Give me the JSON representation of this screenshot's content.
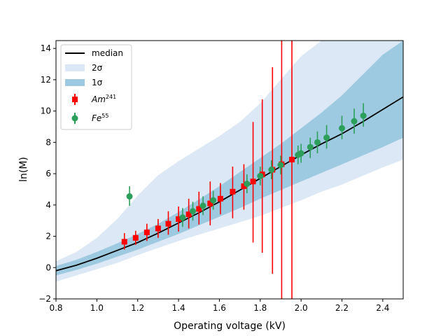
{
  "chart_data": {
    "type": "scatter",
    "xlabel": "Operating voltage (kV)",
    "ylabel": "ln(M)",
    "xlim": [
      0.8,
      2.5
    ],
    "ylim": [
      -2,
      14.5
    ],
    "xticks": [
      "0.8",
      "1.0",
      "1.2",
      "1.4",
      "1.6",
      "1.8",
      "2.0",
      "2.2",
      "2.4"
    ],
    "yticks": [
      "−2",
      "0",
      "2",
      "4",
      "6",
      "8",
      "10",
      "12",
      "14"
    ],
    "legend_position": "top-left",
    "grid": false,
    "median": {
      "name": "median",
      "color": "#000000",
      "x": [
        0.8,
        0.9,
        1.0,
        1.1,
        1.2,
        1.3,
        1.4,
        1.5,
        1.6,
        1.7,
        1.8,
        1.9,
        2.0,
        2.1,
        2.2,
        2.3,
        2.4,
        2.5
      ],
      "y": [
        -0.2,
        0.15,
        0.6,
        1.1,
        1.6,
        2.2,
        2.85,
        3.5,
        4.2,
        4.95,
        5.7,
        6.45,
        7.2,
        7.9,
        8.55,
        9.3,
        10.1,
        10.9
      ]
    },
    "band_2sigma": {
      "name": "2σ",
      "color": "#dce8f5",
      "x": [
        0.8,
        0.9,
        1.0,
        1.1,
        1.2,
        1.3,
        1.4,
        1.5,
        1.6,
        1.7,
        1.8,
        1.9,
        2.0,
        2.1,
        2.2,
        2.3,
        2.4,
        2.5
      ],
      "lower": [
        -0.9,
        -0.5,
        -0.1,
        0.3,
        0.8,
        1.25,
        1.7,
        2.1,
        2.5,
        2.9,
        3.3,
        3.8,
        4.3,
        4.85,
        5.3,
        5.85,
        6.4,
        6.9
      ],
      "upper": [
        0.4,
        1.0,
        1.9,
        3.1,
        4.6,
        5.9,
        6.8,
        7.6,
        8.4,
        9.3,
        10.5,
        12.0,
        13.5,
        14.5,
        14.5,
        14.5,
        14.5,
        14.5
      ]
    },
    "band_1sigma": {
      "name": "1σ",
      "color": "#9ecae1",
      "x": [
        0.8,
        0.9,
        1.0,
        1.1,
        1.2,
        1.3,
        1.4,
        1.5,
        1.6,
        1.7,
        1.8,
        1.9,
        2.0,
        2.1,
        2.2,
        2.3,
        2.4,
        2.5
      ],
      "lower": [
        -0.5,
        -0.15,
        0.25,
        0.7,
        1.15,
        1.65,
        2.15,
        2.7,
        3.25,
        3.8,
        4.4,
        4.95,
        5.5,
        6.05,
        6.6,
        7.15,
        7.7,
        8.3
      ],
      "upper": [
        0.1,
        0.5,
        1.0,
        1.55,
        2.15,
        2.8,
        3.55,
        4.35,
        5.2,
        6.1,
        7.0,
        7.9,
        8.9,
        9.9,
        11.0,
        12.3,
        13.6,
        14.5
      ]
    },
    "series": [
      {
        "name": "Am",
        "name_sup": "241",
        "color": "#ff0000",
        "marker": "square",
        "x": [
          1.135,
          1.19,
          1.245,
          1.3,
          1.35,
          1.4,
          1.45,
          1.5,
          1.555,
          1.605,
          1.665,
          1.72,
          1.765,
          1.81,
          1.86,
          1.905,
          1.955
        ],
        "y": [
          1.65,
          1.9,
          2.25,
          2.5,
          2.8,
          3.1,
          3.4,
          3.75,
          4.1,
          4.4,
          4.85,
          5.2,
          5.5,
          5.95,
          6.25,
          6.6,
          6.9
        ],
        "err_low": [
          0.5,
          0.45,
          0.55,
          0.6,
          0.7,
          0.8,
          0.9,
          1.0,
          1.4,
          1.0,
          1.7,
          1.5,
          3.9,
          5.0,
          6.65,
          8.6,
          8.9
        ],
        "err_high": [
          0.55,
          0.45,
          0.55,
          0.6,
          0.8,
          0.8,
          1.0,
          1.1,
          1.4,
          1.0,
          1.6,
          1.4,
          3.8,
          4.8,
          6.55,
          7.9,
          7.6
        ]
      },
      {
        "name": "Fe",
        "name_sup": "55",
        "color": "#2ca05a",
        "marker": "circle",
        "x": [
          1.16,
          1.42,
          1.47,
          1.52,
          1.57,
          1.735,
          1.8,
          1.855,
          1.9,
          1.985,
          2.0,
          2.045,
          2.08,
          2.125,
          2.2,
          2.26,
          2.305
        ],
        "y": [
          4.55,
          3.2,
          3.6,
          3.95,
          4.3,
          5.35,
          5.85,
          6.25,
          6.55,
          7.2,
          7.3,
          7.7,
          8.0,
          8.3,
          8.9,
          9.35,
          9.7
        ],
        "err_low": [
          0.6,
          0.6,
          0.6,
          0.6,
          0.6,
          0.6,
          0.6,
          0.6,
          0.6,
          0.6,
          0.6,
          0.7,
          0.7,
          0.7,
          0.7,
          0.8,
          0.7
        ],
        "err_high": [
          0.65,
          0.6,
          0.6,
          0.6,
          0.6,
          0.6,
          0.6,
          0.6,
          0.6,
          0.6,
          0.6,
          0.6,
          0.7,
          0.8,
          0.8,
          0.8,
          0.8
        ]
      }
    ]
  }
}
